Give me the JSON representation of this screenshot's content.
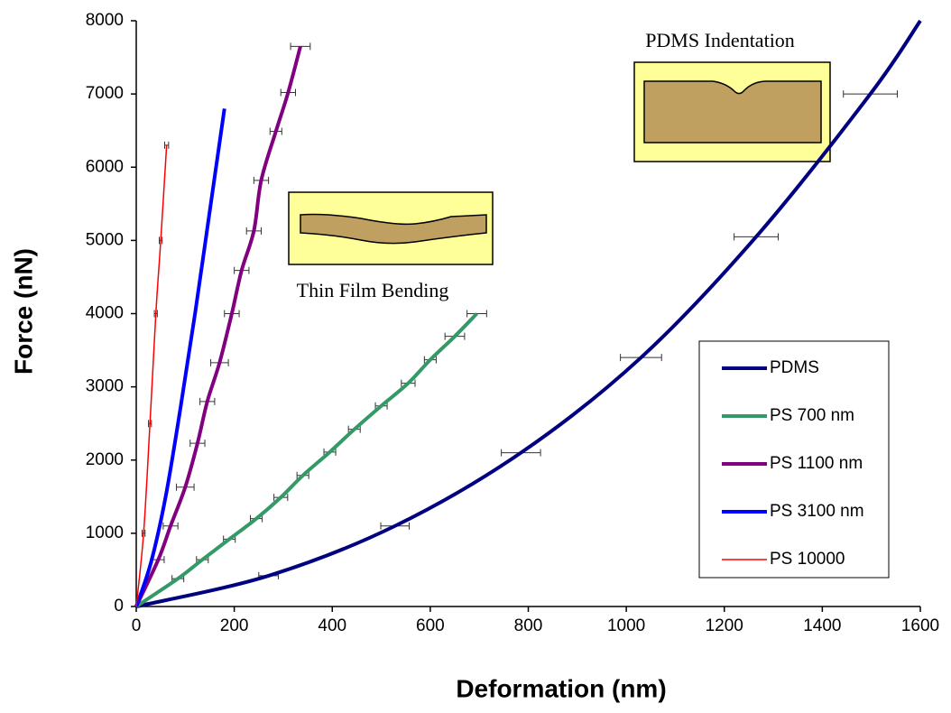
{
  "chart_data": {
    "type": "line",
    "x_label": "Deformation (nm)",
    "y_label": "Force (nN)",
    "xlim": [
      0,
      1600
    ],
    "xticks": [
      0,
      200,
      400,
      600,
      800,
      1000,
      1200,
      1400,
      1600
    ],
    "ylim": [
      0,
      8000
    ],
    "yticks": [
      0,
      1000,
      2000,
      3000,
      4000,
      5000,
      6000,
      7000,
      8000
    ],
    "legend_position": "right",
    "annotations": [
      "PDMS Indentation",
      "Thin Film Bending"
    ],
    "series": [
      {
        "name": "PDMS",
        "color": "#000080",
        "width": 4,
        "x": [
          0,
          270,
          528,
          785,
          1030,
          1265,
          1498,
          1600
        ],
        "values": [
          0,
          420,
          1100,
          2100,
          3400,
          5050,
          7000,
          8000
        ],
        "xerr": [
          null,
          20,
          29,
          40,
          42,
          45,
          55,
          null
        ]
      },
      {
        "name": "PS 700 nm",
        "color": "#339966",
        "width": 4,
        "x": [
          0,
          85,
          135,
          190,
          245,
          295,
          340,
          395,
          445,
          500,
          555,
          600,
          650,
          695
        ],
        "values": [
          0,
          380,
          640,
          920,
          1200,
          1490,
          1790,
          2110,
          2420,
          2740,
          3050,
          3370,
          3690,
          4000
        ],
        "xerr": [
          null,
          12,
          12,
          12,
          12,
          14,
          12,
          12,
          12,
          12,
          14,
          12,
          20,
          20
        ]
      },
      {
        "name": "PS 1100 nm",
        "color": "#800080",
        "width": 4,
        "x": [
          0,
          45,
          70,
          100,
          125,
          145,
          170,
          195,
          215,
          240,
          255,
          285,
          310,
          335
        ],
        "values": [
          0,
          640,
          1100,
          1630,
          2230,
          2800,
          3330,
          4000,
          4590,
          5130,
          5820,
          6490,
          7020,
          7650
        ],
        "xerr": [
          null,
          12,
          15,
          18,
          15,
          15,
          18,
          15,
          15,
          15,
          15,
          12,
          15,
          20
        ]
      },
      {
        "name": "PS 3100 nm",
        "color": "#0000ff",
        "width": 4,
        "x": [
          0,
          30,
          60,
          90,
          120,
          150,
          180
        ],
        "values": [
          0,
          600,
          1500,
          2700,
          4000,
          5400,
          6800
        ]
      },
      {
        "name": "PS 10000",
        "color": "#ff0000",
        "width": 1.5,
        "x": [
          0,
          15,
          28,
          40,
          50,
          62
        ],
        "values": [
          0,
          1000,
          2500,
          4000,
          5000,
          6300
        ],
        "xerr": [
          null,
          3,
          3,
          3,
          3,
          4
        ]
      }
    ]
  }
}
